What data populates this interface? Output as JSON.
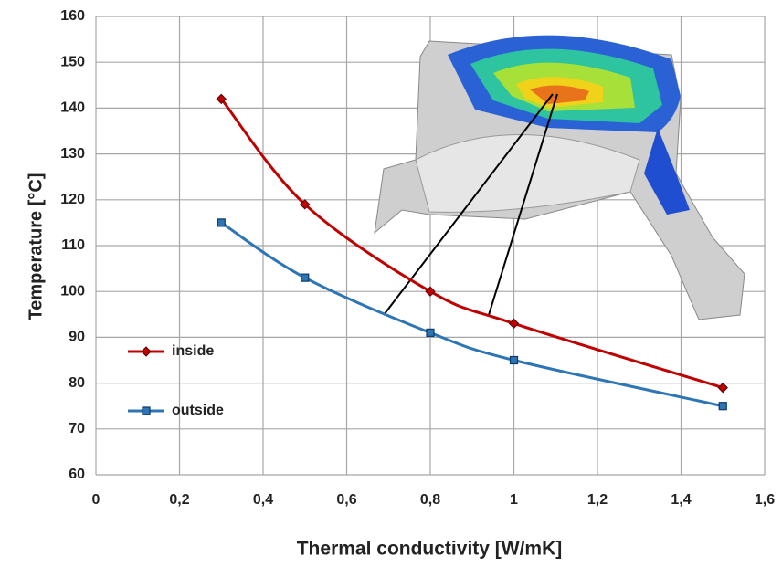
{
  "chart_data": {
    "type": "line",
    "x_label": "Thermal conductivity [W/mK]",
    "y_label": "Temperature  [°C]",
    "x": [
      0.3,
      0.5,
      0.8,
      1,
      1.5
    ],
    "series": [
      {
        "name": "inside",
        "color": "#c00000",
        "marker": "diamond",
        "values": [
          142,
          119,
          100,
          93,
          79
        ]
      },
      {
        "name": "outside",
        "color": "#2e75b6",
        "marker": "square",
        "values": [
          115,
          103,
          91,
          85,
          75
        ]
      }
    ],
    "xlim": [
      0,
      1.6
    ],
    "xticks": [
      0,
      {
        "value": 0.2,
        "label": "0,2"
      },
      {
        "value": 0.4,
        "label": "0,4"
      },
      {
        "value": 0.6,
        "label": "0,6"
      },
      {
        "value": 0.8,
        "label": "0,8"
      },
      1,
      {
        "value": 1.2,
        "label": "1,2"
      },
      {
        "value": 1.4,
        "label": "1,4"
      },
      {
        "value": 1.6,
        "label": "1,6"
      }
    ],
    "ylim": [
      60,
      160
    ],
    "yticks": [
      60,
      70,
      80,
      90,
      100,
      110,
      120,
      130,
      140,
      150,
      160
    ],
    "grid": true,
    "legend": "left",
    "smooth": true
  }
}
